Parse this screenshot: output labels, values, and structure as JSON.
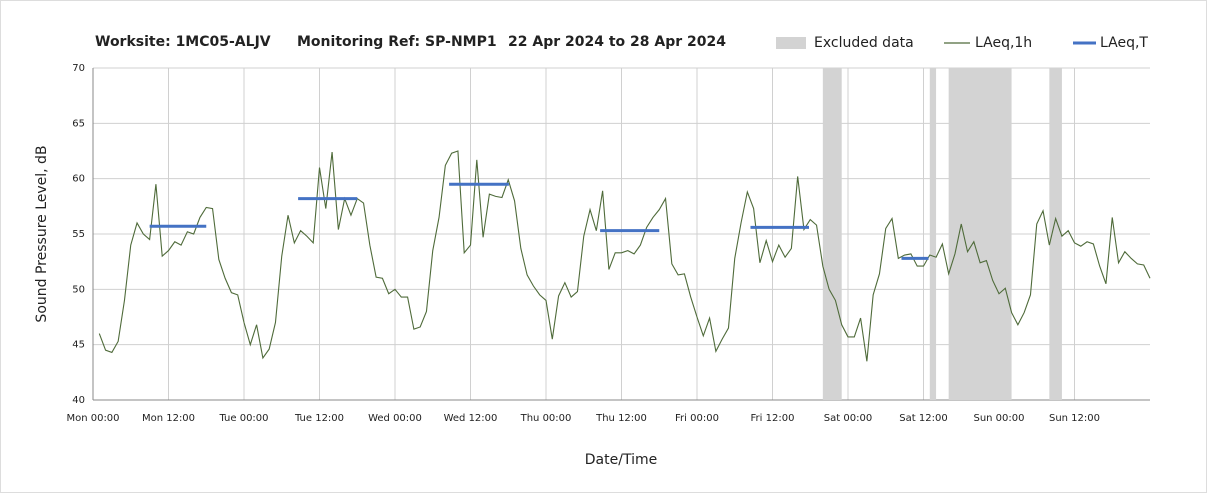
{
  "chart_data": {
    "type": "line",
    "title_parts": [
      "Worksite: 1MC05-ALJV",
      "Monitoring Ref: SP-NMP1",
      "22 Apr 2024 to 28 Apr 2024"
    ],
    "ylabel": "Sound Pressure Level, dB",
    "xlabel": "Date/Time",
    "xlim": [
      0,
      168
    ],
    "ylim": [
      40,
      70
    ],
    "yticks": [
      40,
      45,
      50,
      55,
      60,
      65,
      70
    ],
    "xticks": [
      {
        "value": 0,
        "label": "Mon 00:00"
      },
      {
        "value": 12,
        "label": "Mon 12:00"
      },
      {
        "value": 24,
        "label": "Tue 00:00"
      },
      {
        "value": 36,
        "label": "Tue 12:00"
      },
      {
        "value": 48,
        "label": "Wed 00:00"
      },
      {
        "value": 60,
        "label": "Wed 12:00"
      },
      {
        "value": 72,
        "label": "Thu 00:00"
      },
      {
        "value": 84,
        "label": "Thu 12:00"
      },
      {
        "value": 96,
        "label": "Fri 00:00"
      },
      {
        "value": 108,
        "label": "Fri 12:00"
      },
      {
        "value": 120,
        "label": "Sat 00:00"
      },
      {
        "value": 132,
        "label": "Sat 12:00"
      },
      {
        "value": 144,
        "label": "Sun 00:00"
      },
      {
        "value": 156,
        "label": "Sun 12:00"
      }
    ],
    "grid": true,
    "bands": {
      "name": "Excluded data",
      "color": "#d3d3d3",
      "ranges": [
        [
          116,
          119
        ],
        [
          133,
          134
        ],
        [
          136,
          146
        ],
        [
          152,
          154
        ]
      ]
    },
    "series": [
      {
        "name": "LAeq,1h",
        "color": "#4f6b3a",
        "x": [
          1,
          2,
          3,
          4,
          5,
          6,
          7,
          8,
          9,
          10,
          11,
          12,
          13,
          14,
          15,
          16,
          17,
          18,
          19,
          20,
          21,
          22,
          23,
          24,
          25,
          26,
          27,
          28,
          29,
          30,
          31,
          32,
          33,
          34,
          35,
          36,
          37,
          38,
          39,
          40,
          41,
          42,
          43,
          44,
          45,
          46,
          47,
          48,
          49,
          50,
          51,
          52,
          53,
          54,
          55,
          56,
          57,
          58,
          59,
          60,
          61,
          62,
          63,
          64,
          65,
          66,
          67,
          68,
          69,
          70,
          71,
          72,
          73,
          74,
          75,
          76,
          77,
          78,
          79,
          80,
          81,
          82,
          83,
          84,
          85,
          86,
          87,
          88,
          89,
          90,
          91,
          92,
          93,
          94,
          95,
          96,
          97,
          98,
          99,
          100,
          101,
          102,
          103,
          104,
          105,
          106,
          107,
          108,
          109,
          110,
          111,
          112,
          113,
          114,
          115,
          116,
          117,
          118,
          119,
          120,
          121,
          122,
          123,
          124,
          125,
          126,
          127,
          128,
          129,
          130,
          131,
          132,
          133,
          134,
          135,
          136,
          137,
          138,
          139,
          140,
          141,
          142,
          143,
          144,
          145,
          146,
          147,
          148,
          149,
          150,
          151,
          152,
          153,
          154,
          155,
          156,
          157,
          158,
          159,
          160,
          161,
          162,
          163,
          164,
          165,
          166,
          167,
          168
        ],
        "values": [
          46,
          44.5,
          44.3,
          45.3,
          49,
          54,
          56,
          55,
          54.5,
          59.5,
          53,
          53.5,
          54.3,
          54,
          55.2,
          55,
          56.5,
          57.4,
          57.3,
          52.7,
          51,
          49.7,
          49.5,
          47,
          45,
          46.8,
          43.8,
          44.6,
          47,
          53,
          56.7,
          54.2,
          55.3,
          54.8,
          54.2,
          61,
          57.3,
          62.4,
          55.4,
          58.2,
          56.7,
          58.2,
          57.8,
          54,
          51.1,
          51,
          49.6,
          50,
          49.3,
          49.3,
          46.4,
          46.6,
          48,
          53.5,
          56.5,
          61.2,
          62.3,
          62.5,
          53.3,
          54,
          61.7,
          54.7,
          58.6,
          58.4,
          58.3,
          59.9,
          58,
          53.7,
          51.3,
          50.3,
          49.5,
          49,
          45.5,
          49.4,
          50.6,
          49.3,
          49.8,
          54.8,
          57.2,
          55.3,
          58.9,
          51.8,
          53.3,
          53.3,
          53.5,
          53.2,
          54,
          55.6,
          56.5,
          57.2,
          58.2,
          52.3,
          51.3,
          51.4,
          49.3,
          47.5,
          45.8,
          47.4,
          44.4,
          45.5,
          46.5,
          52.8,
          56,
          58.8,
          57.3,
          52.4,
          54.4,
          52.5,
          54,
          52.9,
          53.7,
          60.2,
          55.4,
          56.3,
          55.8,
          52.1,
          50,
          49,
          46.8,
          45.7,
          45.7,
          47.4,
          43.5,
          49.5,
          51.4,
          55.5,
          56.4,
          52.8,
          53.1,
          53.2,
          52.1,
          52.1,
          53.1,
          52.9,
          54.1,
          51.4,
          53.2,
          55.9,
          53.4,
          54.3,
          52.4,
          52.6,
          50.8,
          49.6,
          50.1,
          47.9,
          46.8,
          47.9,
          49.5,
          55.9,
          57.1,
          54,
          56.4,
          54.8,
          55.3,
          54.2,
          53.9,
          54.3,
          54.1,
          52.1,
          50.5,
          56.5,
          52.4,
          53.4,
          52.8,
          52.3,
          52.2,
          51
        ]
      }
    ],
    "levels": {
      "name": "LAeq,T",
      "color": "#4472c4",
      "segments": [
        {
          "x": [
            9,
            18
          ],
          "value": 55.7
        },
        {
          "x": [
            32.6,
            42
          ],
          "value": 58.2
        },
        {
          "x": [
            56.6,
            66.1
          ],
          "value": 59.5
        },
        {
          "x": [
            80.6,
            90
          ],
          "value": 55.3
        },
        {
          "x": [
            104.5,
            113.8
          ],
          "value": 55.6
        },
        {
          "x": [
            128.5,
            132.8
          ],
          "value": 52.8
        }
      ]
    }
  }
}
